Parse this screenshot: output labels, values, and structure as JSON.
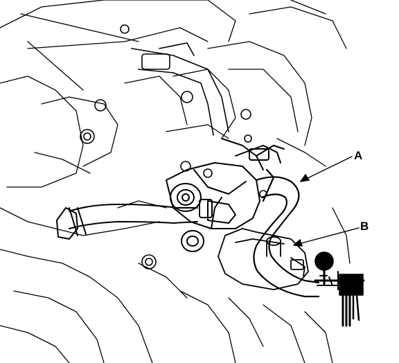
{
  "diagram": {
    "callouts": [
      {
        "id": "A",
        "label": "A",
        "target": "hose"
      },
      {
        "id": "B",
        "label": "B",
        "target": "bracket-fitting"
      }
    ],
    "line_color": "#000000",
    "background_color": "#ffffff"
  }
}
